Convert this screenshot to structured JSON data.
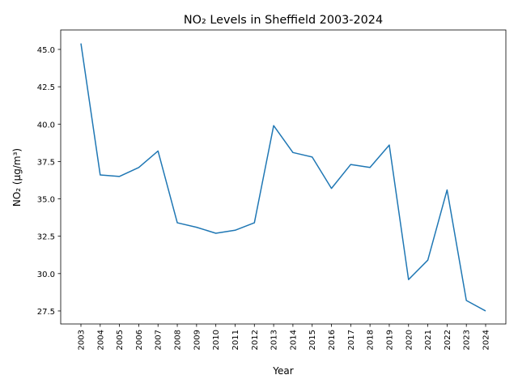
{
  "chart_data": {
    "type": "line",
    "title": "NO₂ Levels in Sheffield 2003-2024",
    "xlabel": "Year",
    "ylabel": "NO₂ (µg/m³)",
    "x": [
      "2003",
      "2004",
      "2005",
      "2006",
      "2007",
      "2008",
      "2009",
      "2010",
      "2011",
      "2012",
      "2013",
      "2014",
      "2015",
      "2016",
      "2017",
      "2018",
      "2019",
      "2020",
      "2021",
      "2022",
      "2023",
      "2024"
    ],
    "series": [
      {
        "values": [
          45.4,
          36.6,
          36.5,
          37.1,
          38.2,
          33.4,
          33.1,
          32.7,
          32.9,
          33.4,
          39.9,
          38.1,
          37.8,
          35.7,
          37.3,
          37.1,
          38.6,
          29.6,
          30.9,
          35.6,
          28.2,
          27.5
        ]
      }
    ],
    "yticks": [
      "27.5",
      "30.0",
      "32.5",
      "35.0",
      "37.5",
      "40.0",
      "42.5",
      "45.0"
    ],
    "ylim": [
      26.63,
      46.3
    ],
    "grid": false,
    "line_color": "#1f77b4"
  }
}
